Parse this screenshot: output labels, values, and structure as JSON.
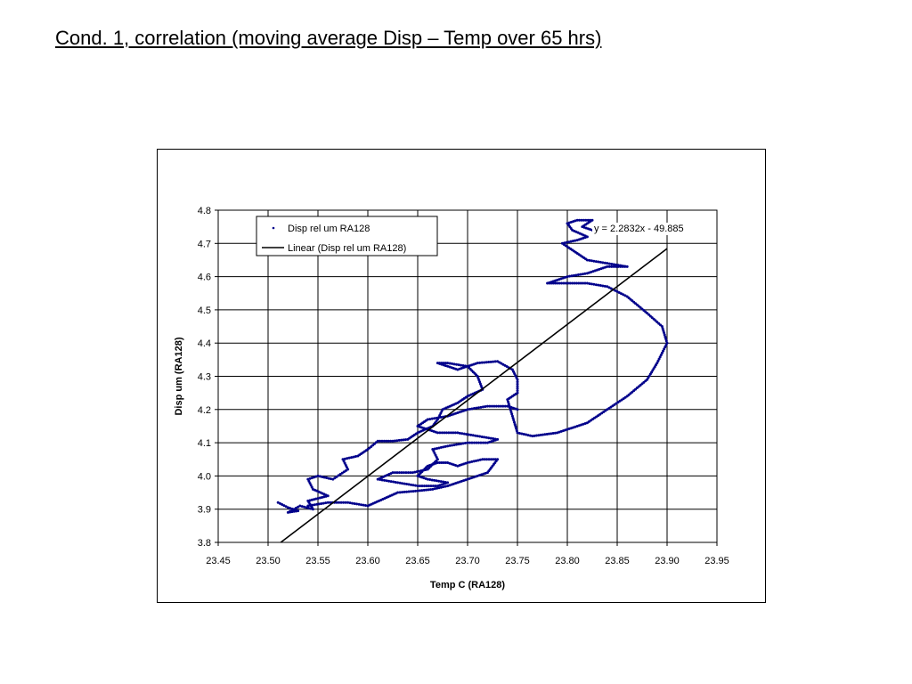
{
  "title": "Cond. 1, correlation (moving average Disp – Temp over 65 hrs)",
  "chart_data": {
    "type": "scatter",
    "xlabel": "Temp C (RA128)",
    "ylabel": "Disp um (RA128)",
    "xlim": [
      23.45,
      23.95
    ],
    "ylim": [
      3.8,
      4.8
    ],
    "x_ticks": [
      "23.45",
      "23.50",
      "23.55",
      "23.60",
      "23.65",
      "23.70",
      "23.75",
      "23.80",
      "23.85",
      "23.90",
      "23.95"
    ],
    "y_ticks": [
      "3.8",
      "3.9",
      "4.0",
      "4.1",
      "4.2",
      "4.3",
      "4.4",
      "4.5",
      "4.6",
      "4.7",
      "4.8"
    ],
    "grid": true,
    "legend_position": "top-left",
    "series": [
      {
        "name": "Disp rel um RA128",
        "color": "#00008B",
        "marker": "dot",
        "points": [
          [
            23.51,
            3.92
          ],
          [
            23.52,
            3.905
          ],
          [
            23.53,
            3.895
          ],
          [
            23.52,
            3.89
          ],
          [
            23.532,
            3.91
          ],
          [
            23.545,
            3.9
          ],
          [
            23.54,
            3.925
          ],
          [
            23.56,
            3.94
          ],
          [
            23.545,
            3.96
          ],
          [
            23.54,
            3.99
          ],
          [
            23.55,
            4.0
          ],
          [
            23.565,
            3.99
          ],
          [
            23.58,
            4.02
          ],
          [
            23.575,
            4.05
          ],
          [
            23.59,
            4.06
          ],
          [
            23.6,
            4.08
          ],
          [
            23.61,
            4.105
          ],
          [
            23.625,
            4.105
          ],
          [
            23.64,
            4.11
          ],
          [
            23.65,
            4.13
          ],
          [
            23.665,
            4.15
          ],
          [
            23.67,
            4.17
          ],
          [
            23.675,
            4.2
          ],
          [
            23.69,
            4.22
          ],
          [
            23.7,
            4.24
          ],
          [
            23.715,
            4.26
          ],
          [
            23.71,
            4.3
          ],
          [
            23.7,
            4.33
          ],
          [
            23.68,
            4.34
          ],
          [
            23.67,
            4.34
          ],
          [
            23.69,
            4.32
          ],
          [
            23.71,
            4.34
          ],
          [
            23.73,
            4.345
          ],
          [
            23.745,
            4.32
          ],
          [
            23.75,
            4.29
          ],
          [
            23.75,
            4.25
          ],
          [
            23.74,
            4.23
          ],
          [
            23.745,
            4.18
          ],
          [
            23.75,
            4.13
          ],
          [
            23.765,
            4.12
          ],
          [
            23.79,
            4.13
          ],
          [
            23.82,
            4.16
          ],
          [
            23.84,
            4.2
          ],
          [
            23.86,
            4.24
          ],
          [
            23.88,
            4.29
          ],
          [
            23.89,
            4.34
          ],
          [
            23.9,
            4.4
          ],
          [
            23.895,
            4.45
          ],
          [
            23.88,
            4.49
          ],
          [
            23.86,
            4.54
          ],
          [
            23.84,
            4.57
          ],
          [
            23.82,
            4.58
          ],
          [
            23.79,
            4.58
          ],
          [
            23.78,
            4.58
          ],
          [
            23.8,
            4.6
          ],
          [
            23.82,
            4.61
          ],
          [
            23.84,
            4.63
          ],
          [
            23.86,
            4.63
          ],
          [
            23.84,
            4.64
          ],
          [
            23.82,
            4.65
          ],
          [
            23.81,
            4.67
          ],
          [
            23.8,
            4.69
          ],
          [
            23.795,
            4.7
          ],
          [
            23.81,
            4.71
          ],
          [
            23.82,
            4.72
          ],
          [
            23.805,
            4.74
          ],
          [
            23.8,
            4.76
          ],
          [
            23.81,
            4.77
          ],
          [
            23.825,
            4.77
          ],
          [
            23.815,
            4.75
          ],
          [
            23.825,
            4.74
          ]
        ]
      },
      {
        "name": "Disp rel um RA128",
        "color": "#00008B",
        "marker": "dot",
        "points": [
          [
            23.54,
            3.91
          ],
          [
            23.56,
            3.92
          ],
          [
            23.58,
            3.92
          ],
          [
            23.6,
            3.91
          ],
          [
            23.615,
            3.93
          ],
          [
            23.63,
            3.95
          ],
          [
            23.65,
            3.955
          ],
          [
            23.665,
            3.96
          ],
          [
            23.68,
            3.97
          ],
          [
            23.7,
            3.99
          ],
          [
            23.72,
            4.01
          ],
          [
            23.73,
            4.05
          ],
          [
            23.715,
            4.05
          ],
          [
            23.7,
            4.04
          ],
          [
            23.69,
            4.03
          ],
          [
            23.68,
            4.04
          ],
          [
            23.67,
            4.04
          ],
          [
            23.66,
            4.03
          ],
          [
            23.65,
            4.0
          ],
          [
            23.66,
            3.99
          ],
          [
            23.68,
            3.98
          ],
          [
            23.67,
            3.97
          ],
          [
            23.65,
            3.97
          ],
          [
            23.63,
            3.98
          ],
          [
            23.61,
            3.99
          ],
          [
            23.625,
            4.01
          ],
          [
            23.645,
            4.01
          ],
          [
            23.66,
            4.02
          ],
          [
            23.67,
            4.05
          ],
          [
            23.665,
            4.08
          ],
          [
            23.68,
            4.09
          ],
          [
            23.7,
            4.1
          ],
          [
            23.72,
            4.1
          ],
          [
            23.73,
            4.11
          ],
          [
            23.71,
            4.12
          ],
          [
            23.69,
            4.13
          ],
          [
            23.67,
            4.13
          ],
          [
            23.65,
            4.15
          ],
          [
            23.66,
            4.17
          ],
          [
            23.68,
            4.18
          ],
          [
            23.7,
            4.2
          ],
          [
            23.72,
            4.21
          ],
          [
            23.74,
            4.21
          ],
          [
            23.75,
            4.2
          ]
        ]
      },
      {
        "name": "Linear (Disp rel um RA128)",
        "color": "#000000",
        "marker": "none",
        "points": [
          [
            23.5127,
            3.8
          ],
          [
            23.9,
            4.6845
          ]
        ]
      }
    ],
    "trendline_equation": "y = 2.2832x - 49.885"
  }
}
